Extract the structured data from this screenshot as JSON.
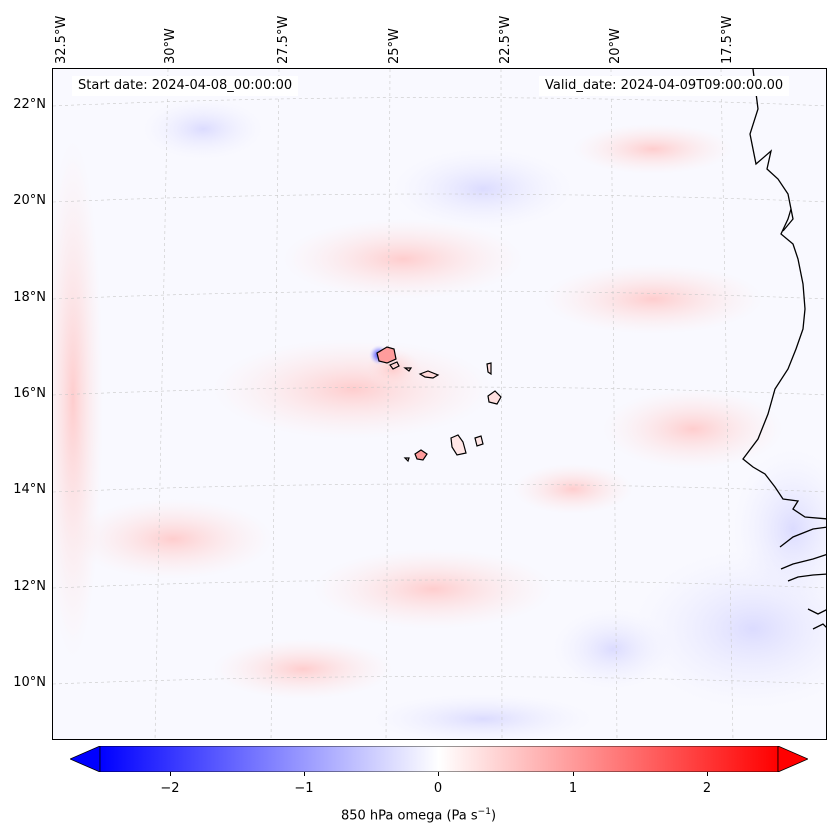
{
  "map": {
    "start_date": "Start date: 2024-04-08_00:00:00",
    "valid_date": "Valid_date: 2024-04-09T09:00:00.00",
    "longitude_labels": [
      "32.5°W",
      "30°W",
      "27.5°W",
      "25°W",
      "22.5°W",
      "20°W",
      "17.5°W"
    ],
    "latitude_labels": [
      "22°N",
      "20°N",
      "18°N",
      "16°N",
      "14°N",
      "12°N",
      "10°N"
    ],
    "features": [
      "coastline-west-africa",
      "cape-verde-islands"
    ]
  },
  "colorbar": {
    "title": "850 hPa omega (Pa s",
    "title_sup": "−1",
    "title_end": ")",
    "ticks": [
      "−2",
      "−1",
      "0",
      "1",
      "2"
    ],
    "min": -2.7,
    "max": 2.7,
    "colors": {
      "low": "#0000ff",
      "mid": "#ffffff",
      "high": "#ff0000"
    }
  }
}
